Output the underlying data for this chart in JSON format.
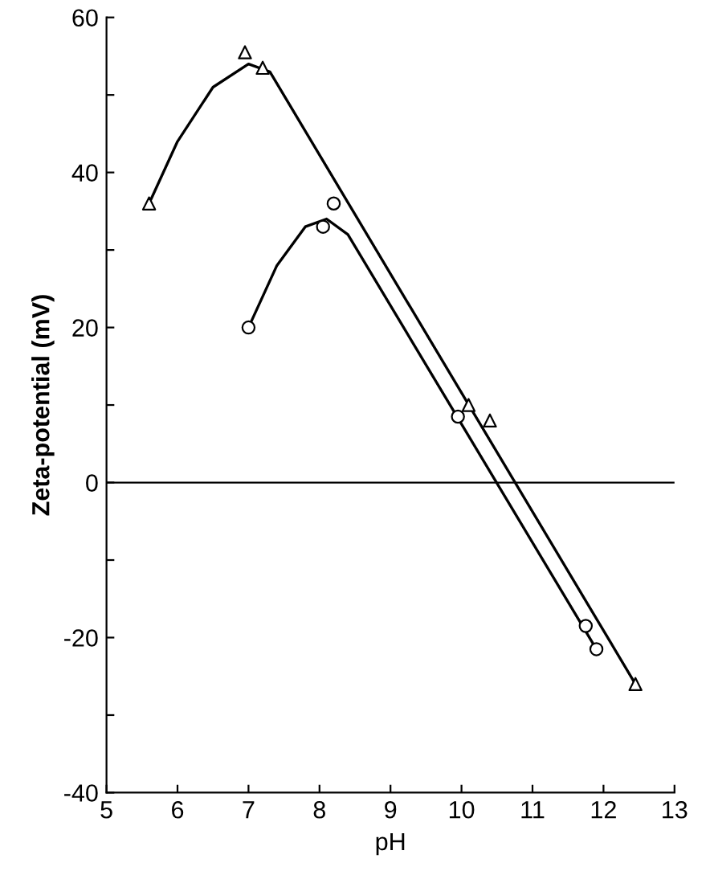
{
  "chart_data": {
    "type": "scatter",
    "xlabel": "pH",
    "ylabel": "Zeta-potential (mV)",
    "xlim": [
      5,
      13
    ],
    "xticks": [
      5,
      6,
      7,
      8,
      9,
      10,
      11,
      12,
      13
    ],
    "ylim": [
      -40,
      60
    ],
    "yticks": [
      -40,
      {
        "value": -30,
        "label": null
      },
      -20,
      {
        "value": -10,
        "label": null
      },
      0,
      {
        "value": 10,
        "label": null
      },
      20,
      {
        "value": 30,
        "label": null
      },
      40,
      {
        "value": 50,
        "label": null
      },
      60
    ],
    "grid": false,
    "legend": false,
    "ref_lines": [
      {
        "axis": "y",
        "value": 0,
        "color": "#000000",
        "line_style": "solid"
      }
    ],
    "series": [
      {
        "marker": "triangle",
        "color": "#000000",
        "x": [
          5.6,
          6.95,
          7.2,
          10.1,
          10.4,
          12.45
        ],
        "values": [
          36,
          55.5,
          53.5,
          10,
          8,
          -26
        ]
      },
      {
        "marker": "circle",
        "color": "#000000",
        "x": [
          7.0,
          8.05,
          8.2,
          9.95,
          11.75,
          11.9
        ],
        "values": [
          20,
          33,
          36,
          8.5,
          -18.5,
          -21.5
        ]
      },
      {
        "type": "line",
        "marker": "none",
        "line_style": "solid",
        "color": "#000000",
        "x": [
          5.6,
          6.0,
          6.5,
          7.0,
          7.3,
          12.45
        ],
        "values": [
          36,
          44,
          51,
          54,
          53,
          -26
        ]
      },
      {
        "type": "line",
        "marker": "none",
        "line_style": "solid",
        "color": "#000000",
        "x": [
          7.0,
          7.4,
          7.8,
          8.1,
          8.4,
          11.9
        ],
        "values": [
          20,
          28,
          33,
          34,
          32,
          -21.5
        ]
      }
    ]
  }
}
